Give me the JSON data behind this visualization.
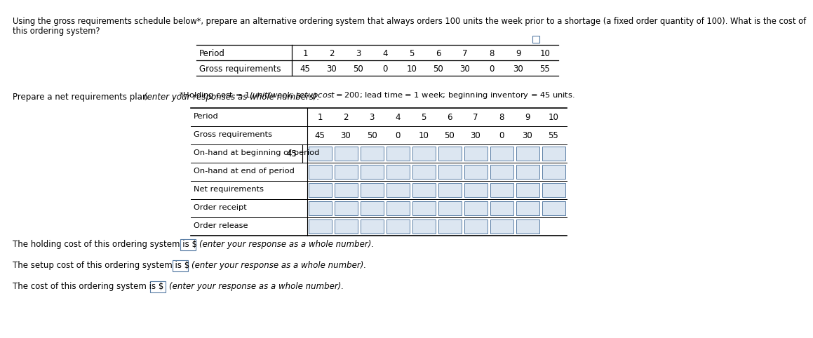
{
  "title_line1": "Using the gross requirements schedule below*, prepare an alternative ordering system that always orders 100 units the week prior to a shortage (a fixed order quantity of 100). What is the cost of",
  "title_line2": "this ordering system?",
  "footnote": "*Holding cost = $1/unit/week; setup cost = $200; lead time = 1 week; beginning inventory = 45 units.",
  "prepare_text": "Prepare a net requirements plan ",
  "prepare_italic": "(enter your responses as whole numbers).",
  "periods": [
    1,
    2,
    3,
    4,
    5,
    6,
    7,
    8,
    9,
    10
  ],
  "gross_requirements": [
    45,
    30,
    50,
    0,
    10,
    50,
    30,
    0,
    30,
    55
  ],
  "top_table_label": "Period",
  "top_table_row2": "Gross requirements",
  "net_rows": [
    "Period",
    "Gross requirements",
    "On-hand at beginning of period",
    "On-hand at end of period",
    "Net requirements",
    "Order receipt",
    "Order release"
  ],
  "on_hand_begin_value": "45",
  "holding_cost_text": "The holding cost of this ordering system is $",
  "setup_cost_text": "The setup cost of this ordering system is $",
  "total_cost_text": "The cost of this ordering system is $",
  "response_italic": "(enter your response as a whole number).",
  "bg_color": "#ffffff",
  "text_color": "#000000",
  "cell_border_color": "#5b7fa6",
  "cell_fill_color": "#dce6f1"
}
